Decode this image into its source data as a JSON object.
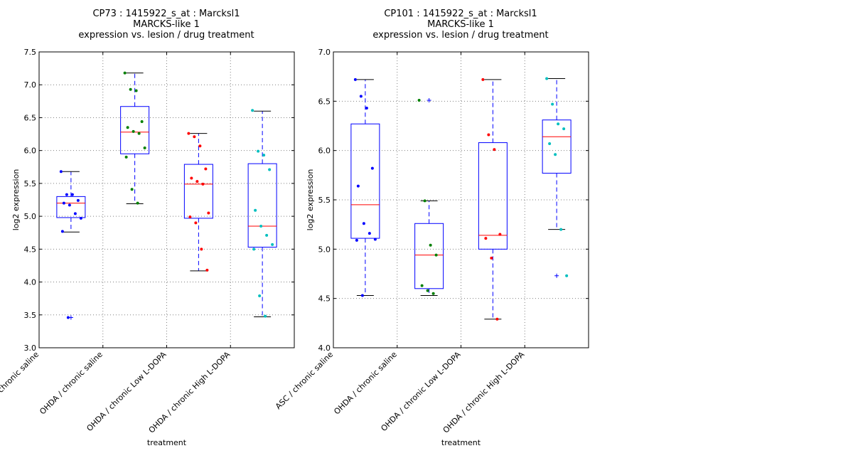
{
  "chart_data": [
    {
      "type": "box",
      "title": [
        "CP73 : 1415922_s_at : Marcksl1",
        "MARCKS-like 1",
        "expression vs. lesion / drug treatment"
      ],
      "xlabel": "treatment",
      "ylabel": "log2 expression",
      "ylim": [
        3.0,
        7.5
      ],
      "yticks": [
        "3.0",
        "3.5",
        "4.0",
        "4.5",
        "5.0",
        "5.5",
        "6.0",
        "6.5",
        "7.0",
        "7.5"
      ],
      "grid": true,
      "categories": [
        "ASC / chronic saline",
        "OHDA / chronic saline",
        "OHDA / chronic Low L-DOPA",
        "OHDA / chronic High L-DOPA"
      ],
      "groups": [
        {
          "color": "#0000ff",
          "q1": 4.98,
          "median": 5.2,
          "q3": 5.3,
          "whisker_low": 4.76,
          "whisker_high": 5.68,
          "outliers": [
            3.46
          ],
          "points": [
            5.68,
            5.33,
            5.33,
            5.24,
            5.2,
            5.17,
            5.04,
            4.97,
            4.77,
            3.46
          ]
        },
        {
          "color": "#008000",
          "q1": 5.95,
          "median": 6.28,
          "q3": 6.67,
          "whisker_low": 5.19,
          "whisker_high": 7.18,
          "outliers": [],
          "points": [
            7.18,
            6.93,
            6.91,
            6.44,
            6.35,
            6.29,
            6.26,
            6.04,
            5.9,
            5.41,
            5.2
          ]
        },
        {
          "color": "#ff0000",
          "q1": 4.97,
          "median": 5.49,
          "q3": 5.79,
          "whisker_low": 4.17,
          "whisker_high": 6.26,
          "outliers": [],
          "points": [
            6.26,
            6.21,
            6.07,
            5.72,
            5.58,
            5.53,
            5.49,
            5.05,
            4.99,
            4.9,
            4.5,
            4.18
          ]
        },
        {
          "color": "#00bfbf",
          "q1": 4.53,
          "median": 4.85,
          "q3": 5.8,
          "whisker_low": 3.47,
          "whisker_high": 6.6,
          "outliers": [],
          "points": [
            6.61,
            5.99,
            5.93,
            5.71,
            5.09,
            4.85,
            4.71,
            4.57,
            4.5,
            3.79,
            3.48
          ]
        }
      ]
    },
    {
      "type": "box",
      "title": [
        "CP101 : 1415922_s_at : Marcksl1",
        "MARCKS-like 1",
        "expression vs. lesion / drug treatment"
      ],
      "xlabel": "treatment",
      "ylabel": "log2 expression",
      "ylim": [
        4.0,
        7.0
      ],
      "yticks": [
        "4.0",
        "4.5",
        "5.0",
        "5.5",
        "6.0",
        "6.5",
        "7.0"
      ],
      "grid": true,
      "categories": [
        "ASC / chronic saline",
        "OHDA / chronic saline",
        "OHDA / chronic Low L-DOPA",
        "OHDA / chronic High L-DOPA"
      ],
      "groups": [
        {
          "color": "#0000ff",
          "q1": 5.11,
          "median": 5.45,
          "q3": 6.27,
          "whisker_low": 4.53,
          "whisker_high": 6.72,
          "outliers": [],
          "points": [
            6.72,
            6.55,
            6.43,
            5.82,
            5.64,
            5.26,
            5.16,
            5.1,
            5.09,
            4.53
          ]
        },
        {
          "color": "#008000",
          "q1": 4.6,
          "median": 4.94,
          "q3": 5.26,
          "whisker_low": 4.53,
          "whisker_high": 5.49,
          "outliers": [
            6.51
          ],
          "points": [
            6.51,
            5.49,
            5.04,
            4.94,
            4.63,
            4.58,
            4.55
          ]
        },
        {
          "color": "#ff0000",
          "q1": 5.0,
          "median": 5.14,
          "q3": 6.08,
          "whisker_low": 4.29,
          "whisker_high": 6.72,
          "outliers": [],
          "points": [
            6.72,
            6.16,
            6.01,
            5.15,
            5.11,
            4.91,
            4.29
          ]
        },
        {
          "color": "#00bfbf",
          "q1": 5.77,
          "median": 6.14,
          "q3": 6.31,
          "whisker_low": 5.2,
          "whisker_high": 6.73,
          "outliers": [
            4.73
          ],
          "points": [
            6.73,
            6.47,
            6.27,
            6.22,
            6.07,
            5.96,
            5.2,
            4.73
          ]
        }
      ]
    }
  ]
}
